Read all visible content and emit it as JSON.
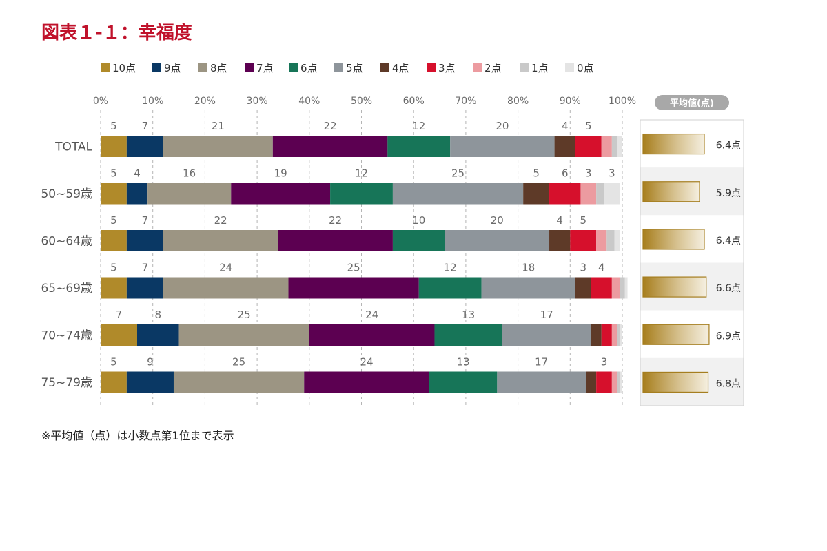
{
  "title": "図表１-１：幸福度",
  "footnote": "※平均値（点）は小数点第1位まで表示",
  "chart_data": {
    "type": "bar",
    "orientation": "horizontal",
    "stacked": true,
    "xlim": [
      0,
      100
    ],
    "ticks": [
      "0%",
      "10%",
      "20%",
      "30%",
      "40%",
      "50%",
      "60%",
      "70%",
      "80%",
      "90%",
      "100%"
    ],
    "grid": true,
    "legend_position": "top",
    "categories": [
      "TOTAL",
      "50~59歳",
      "60~64歳",
      "65~69歳",
      "70~74歳",
      "75~79歳"
    ],
    "series": [
      {
        "name": "10点",
        "color": "#b08a2a",
        "values": [
          5,
          5,
          5,
          5,
          7,
          5
        ]
      },
      {
        "name": "9点",
        "color": "#0a3864",
        "values": [
          7,
          4,
          7,
          7,
          8,
          9
        ]
      },
      {
        "name": "8点",
        "color": "#9c9583",
        "values": [
          21,
          16,
          22,
          24,
          25,
          25
        ]
      },
      {
        "name": "7点",
        "color": "#5c0051",
        "values": [
          22,
          19,
          22,
          25,
          24,
          24
        ]
      },
      {
        "name": "6点",
        "color": "#177558",
        "values": [
          12,
          12,
          10,
          12,
          13,
          13
        ]
      },
      {
        "name": "5点",
        "color": "#8e959b",
        "values": [
          20,
          25,
          20,
          18,
          17,
          17
        ]
      },
      {
        "name": "4点",
        "color": "#5e3a28",
        "values": [
          4,
          5,
          4,
          3,
          2,
          2
        ]
      },
      {
        "name": "3点",
        "color": "#d6102c",
        "values": [
          5,
          6,
          5,
          4,
          2,
          3
        ]
      },
      {
        "name": "2点",
        "color": "#ec9ba0",
        "values": [
          2,
          3,
          2,
          1.5,
          1,
          1
        ]
      },
      {
        "name": "1点",
        "color": "#c9c9c9",
        "values": [
          1,
          1.5,
          1.5,
          1,
          0.5,
          0.5
        ]
      },
      {
        "name": "0点",
        "color": "#e4e4e4",
        "values": [
          1,
          3,
          1,
          0.5,
          0.5,
          0.5
        ]
      }
    ],
    "data_labels": [
      [
        5,
        7,
        21,
        22,
        12,
        20,
        4,
        5,
        null,
        null,
        null
      ],
      [
        5,
        4,
        16,
        19,
        12,
        25,
        5,
        6,
        3,
        null,
        3
      ],
      [
        5,
        7,
        22,
        22,
        10,
        20,
        4,
        5,
        null,
        null,
        null
      ],
      [
        5,
        7,
        24,
        25,
        12,
        18,
        3,
        4,
        null,
        null,
        null
      ],
      [
        7,
        8,
        25,
        24,
        13,
        17,
        null,
        null,
        null,
        null,
        null
      ],
      [
        5,
        9,
        25,
        24,
        13,
        17,
        null,
        3,
        null,
        null,
        null
      ]
    ],
    "average": {
      "header": "平均値(点)",
      "values": [
        6.4,
        5.9,
        6.4,
        6.6,
        6.9,
        6.8
      ],
      "labels": [
        "6.4点",
        "5.9点",
        "6.4点",
        "6.6点",
        "6.9点",
        "6.8点"
      ],
      "bar_max": 8.2
    }
  }
}
